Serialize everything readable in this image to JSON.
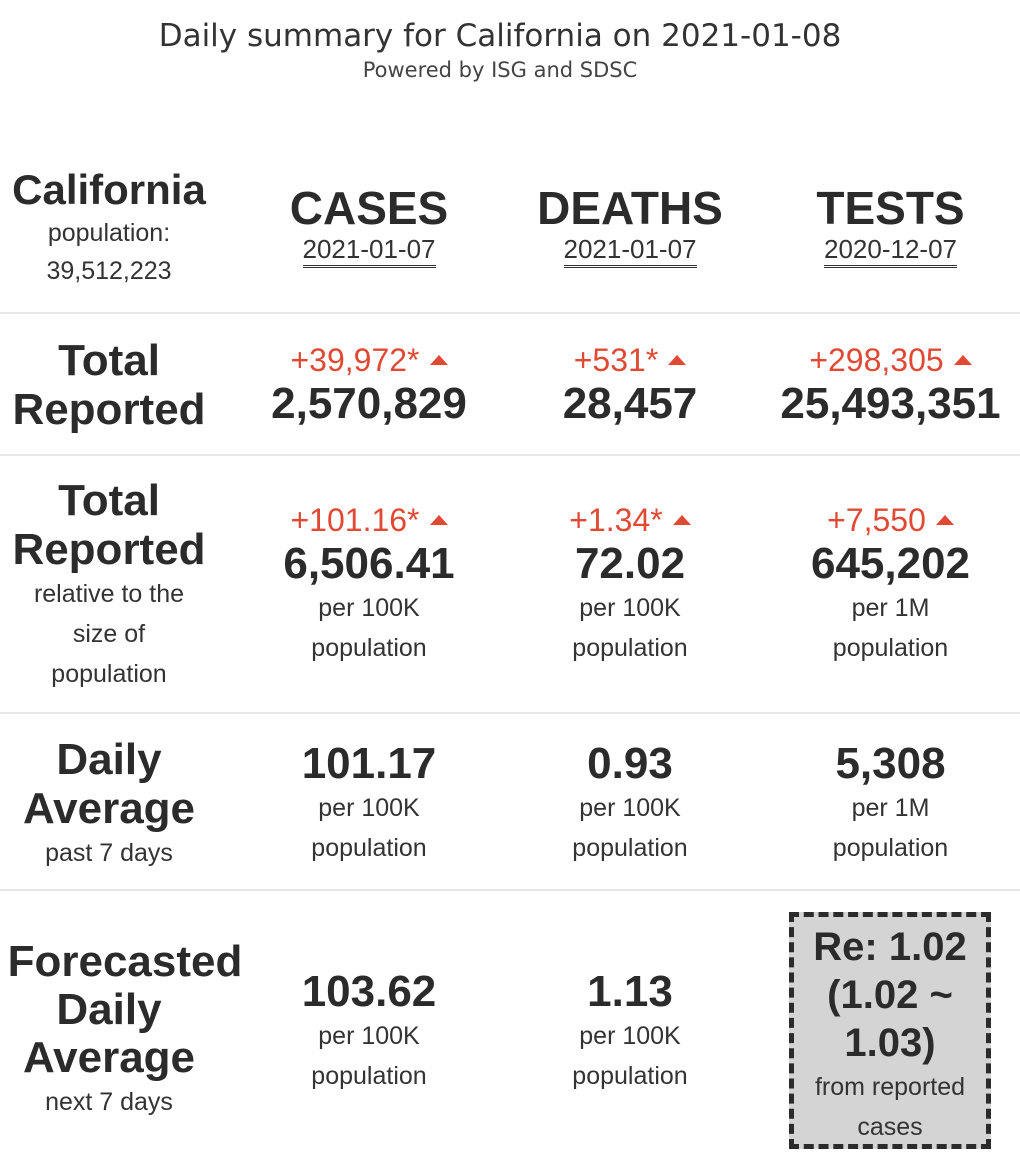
{
  "header": {
    "title": "Daily summary for California on 2021-01-08",
    "subtitle": "Powered by ISG and SDSC"
  },
  "region": {
    "name": "California",
    "population_label": "population:",
    "population_value": "39,512,223"
  },
  "columns": [
    {
      "name": "CASES",
      "date": "2021-01-07"
    },
    {
      "name": "DEATHS",
      "date": "2021-01-07"
    },
    {
      "name": "TESTS",
      "date": "2020-12-07"
    }
  ],
  "rows": {
    "total_reported": {
      "label_line1": "Total",
      "label_line2": "Reported",
      "cells": [
        {
          "delta": "+39,972*",
          "trend": "up",
          "value": "2,570,829"
        },
        {
          "delta": "+531*",
          "trend": "up",
          "value": "28,457"
        },
        {
          "delta": "+298,305",
          "trend": "up",
          "value": "25,493,351"
        }
      ]
    },
    "relative": {
      "label_line1": "Total",
      "label_line2": "Reported",
      "sub_line1": "relative to the",
      "sub_line2": "size of",
      "sub_line3": "population",
      "cells": [
        {
          "delta": "+101.16*",
          "trend": "up",
          "value": "6,506.41",
          "unit_line1": "per 100K",
          "unit_line2": "population"
        },
        {
          "delta": "+1.34*",
          "trend": "up",
          "value": "72.02",
          "unit_line1": "per 100K",
          "unit_line2": "population"
        },
        {
          "delta": "+7,550",
          "trend": "up",
          "value": "645,202",
          "unit_line1": "per 1M",
          "unit_line2": "population"
        }
      ]
    },
    "daily_average": {
      "label_line1": "Daily",
      "label_line2": "Average",
      "sub_line1": "past 7 days",
      "cells": [
        {
          "value": "101.17",
          "unit_line1": "per 100K",
          "unit_line2": "population"
        },
        {
          "value": "0.93",
          "unit_line1": "per 100K",
          "unit_line2": "population"
        },
        {
          "value": "5,308",
          "unit_line1": "per 1M",
          "unit_line2": "population"
        }
      ]
    },
    "forecast": {
      "label_line1": "Forecasted",
      "label_line2": "Daily",
      "label_line3": "Average",
      "sub_line1": "next 7 days",
      "cells": [
        {
          "value": "103.62",
          "unit_line1": "per 100K",
          "unit_line2": "population"
        },
        {
          "value": "1.13",
          "unit_line1": "per 100K",
          "unit_line2": "population"
        }
      ],
      "re_box": {
        "line1": "Re: 1.02",
        "line2": "(1.02 ~",
        "line3": "1.03)",
        "sub_line1": "from reported",
        "sub_line2": "cases"
      }
    }
  },
  "colors": {
    "delta_red": "#e04a34",
    "text_dark": "#2b2b2b",
    "re_box_bg": "#d4d4d4"
  }
}
